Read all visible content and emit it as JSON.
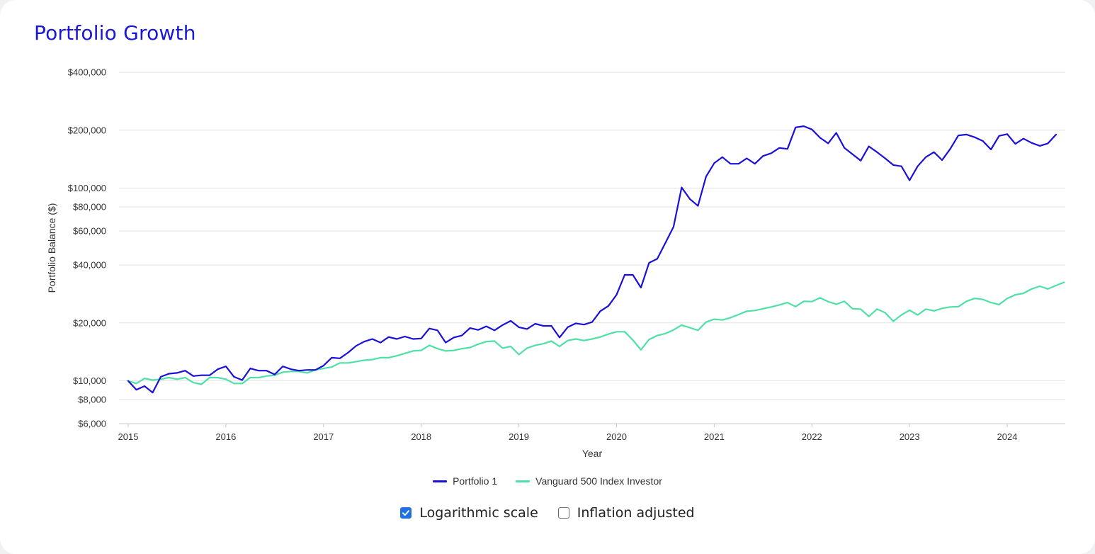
{
  "title": "Portfolio Growth",
  "controls": {
    "log_scale_label": "Logarithmic scale",
    "log_scale_checked": true,
    "inflation_label": "Inflation adjusted",
    "inflation_checked": false
  },
  "chart_data": {
    "type": "line",
    "title": "Portfolio Growth",
    "xlabel": "Year",
    "ylabel": "Portfolio Balance ($)",
    "scale": "log",
    "ylim": [
      6000,
      400000
    ],
    "xlim": [
      2015,
      2024.5
    ],
    "grid": "horizontal",
    "legend": "bottom-center",
    "y_ticks": [
      {
        "value": 6000,
        "label": "$6,000"
      },
      {
        "value": 8000,
        "label": "$8,000"
      },
      {
        "value": 10000,
        "label": "$10,000"
      },
      {
        "value": 20000,
        "label": "$20,000"
      },
      {
        "value": 40000,
        "label": "$40,000"
      },
      {
        "value": 60000,
        "label": "$60,000"
      },
      {
        "value": 80000,
        "label": "$80,000"
      },
      {
        "value": 100000,
        "label": "$100,000"
      },
      {
        "value": 200000,
        "label": "$200,000"
      },
      {
        "value": 400000,
        "label": "$400,000"
      }
    ],
    "x_ticks": [
      {
        "value": 2015,
        "label": "2015"
      },
      {
        "value": 2016,
        "label": "2016"
      },
      {
        "value": 2017,
        "label": "2017"
      },
      {
        "value": 2018,
        "label": "2018"
      },
      {
        "value": 2019,
        "label": "2019"
      },
      {
        "value": 2020,
        "label": "2020"
      },
      {
        "value": 2021,
        "label": "2021"
      },
      {
        "value": 2022,
        "label": "2022"
      },
      {
        "value": 2023,
        "label": "2023"
      },
      {
        "value": 2024,
        "label": "2024"
      }
    ],
    "series": [
      {
        "name": "Portfolio 1",
        "color": "#1a10d8",
        "start": "2015-01",
        "frequency": "monthly",
        "values": [
          10000,
          9000,
          9400,
          8700,
          10500,
          10900,
          11000,
          11300,
          10600,
          10700,
          10700,
          11500,
          11900,
          10500,
          10100,
          11600,
          11300,
          11300,
          10800,
          11900,
          11500,
          11300,
          11400,
          11400,
          12000,
          13200,
          13100,
          14000,
          15200,
          16000,
          16500,
          15800,
          16900,
          16500,
          17000,
          16500,
          16600,
          18700,
          18300,
          15800,
          16800,
          17200,
          18800,
          18400,
          19200,
          18300,
          19500,
          20500,
          19000,
          18600,
          19800,
          19300,
          19300,
          16800,
          19000,
          19900,
          19600,
          20200,
          23000,
          24500,
          28000,
          35500,
          35500,
          30500,
          41000,
          43000,
          52000,
          63000,
          101000,
          88000,
          81000,
          115000,
          135000,
          145000,
          134000,
          134000,
          143000,
          134000,
          147000,
          152000,
          162000,
          160000,
          207000,
          210000,
          202000,
          183000,
          171000,
          194000,
          162000,
          150000,
          139000,
          165000,
          154000,
          143000,
          132000,
          130000,
          110000,
          130000,
          145000,
          154000,
          140000,
          160000,
          188000,
          190000,
          184000,
          176000,
          159000,
          187000,
          191000,
          170000,
          181000,
          172000,
          166000,
          171000,
          190000
        ]
      },
      {
        "name": "Vanguard 500 Index Investor",
        "color": "#4fe0a6",
        "start": "2015-01",
        "frequency": "monthly",
        "values": [
          10000,
          9700,
          10300,
          10100,
          10200,
          10400,
          10200,
          10400,
          9800,
          9600,
          10400,
          10400,
          10200,
          9700,
          9700,
          10400,
          10400,
          10600,
          10700,
          11100,
          11200,
          11200,
          11000,
          11400,
          11600,
          11800,
          12400,
          12400,
          12600,
          12800,
          12900,
          13200,
          13200,
          13500,
          13900,
          14300,
          14400,
          15300,
          14700,
          14300,
          14400,
          14700,
          14900,
          15500,
          16000,
          16100,
          14800,
          15100,
          13700,
          14800,
          15300,
          15600,
          16100,
          15100,
          16200,
          16500,
          16200,
          16500,
          16900,
          17500,
          18000,
          18000,
          16300,
          14500,
          16400,
          17200,
          17600,
          18400,
          19500,
          18900,
          18300,
          20200,
          20900,
          20700,
          21300,
          22100,
          23000,
          23200,
          23700,
          24200,
          24800,
          25500,
          24300,
          25900,
          25800,
          27000,
          25800,
          25000,
          25900,
          23700,
          23600,
          21600,
          23600,
          22600,
          20400,
          22000,
          23300,
          22000,
          23600,
          23100,
          23800,
          24200,
          24300,
          25900,
          26800,
          26500,
          25500,
          24900,
          26800,
          28000,
          28500,
          30000,
          31000,
          30000,
          31300,
          32500
        ]
      }
    ]
  }
}
